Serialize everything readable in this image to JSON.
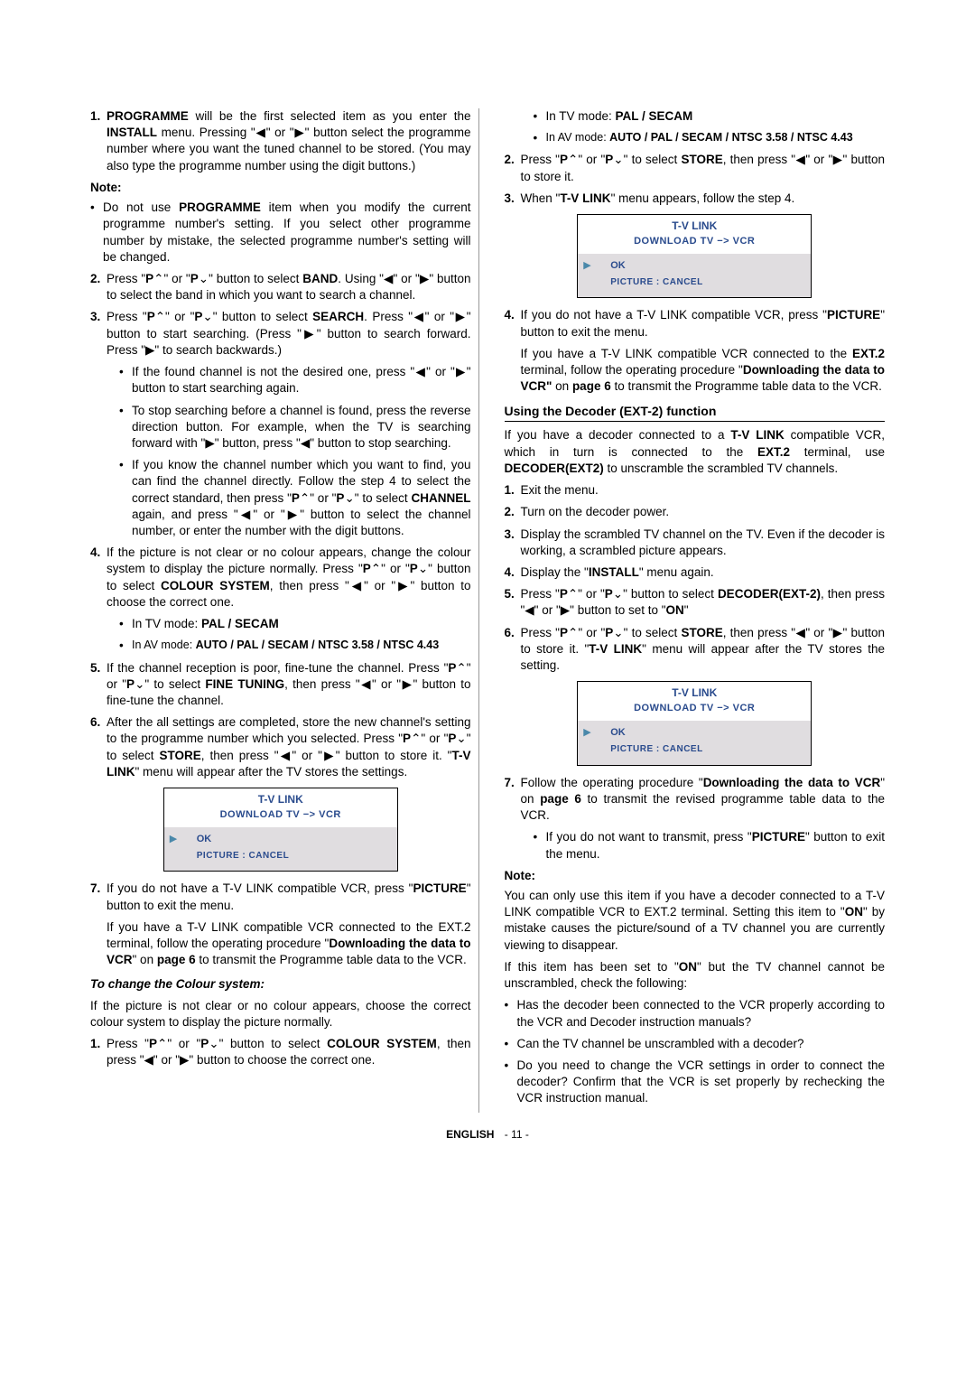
{
  "left": {
    "li1": {
      "n": "1.",
      "t_before": "",
      "t_bold": "PROGRAMME",
      "t_after": " will be the first selected item as you enter the ",
      "b2": "INSTALL",
      "t_after2": " menu. Pressing \"◀\" or \"▶\" button select the programme number where you want the tuned channel to be stored. (You may also type the programme number using the digit buttons.)"
    },
    "note": "Note:",
    "note_p": {
      "a": "Do not use ",
      "b": "PROGRAMME",
      "c": " item when you modify the current programme number's setting. If you select other programme number by mistake, the selected programme number's setting will be changed."
    },
    "li2": {
      "n": "2.",
      "a": "Press \"",
      "b1": "P",
      "arr1": "⌃",
      "mid": "\" or \"",
      "b2": "P",
      "arr2": "⌄",
      "c": "\" button to select ",
      "b3": "BAND",
      "d": ". Using \"◀\" or \"▶\" button to select the band in which you want to search a channel."
    },
    "li3": {
      "n": "3.",
      "a": "Press \"",
      "b1": "P",
      "arr1": "⌃",
      "mid": "\" or \"",
      "b2": "P",
      "arr2": "⌄",
      "c": "\" button to select ",
      "b3": "SEARCH",
      "d": ". Press \"◀\" or \"▶\" button to start searching. (Press \"▶\" button to search forward. Press \"▶\" to search backwards.)"
    },
    "li3_s1": "If the found channel is not the desired one, press \"◀\" or \"▶\" button to start searching again.",
    "li3_s2": "To stop searching before a channel is found, press the reverse direction button. For example, when the TV is searching forward with \"▶\" button, press \"◀\" button to stop searching.",
    "li3_s3": {
      "a": "If you know the channel number which you want to find, you can find the channel directly. Follow the step 4 to select the correct standard, then press \"",
      "b1": "P",
      "arr1": "⌃",
      "mid": "\" or \"",
      "b2": "P",
      "arr2": "⌄",
      "c": "\" to select ",
      "b3": "CHANNEL",
      "d": " again, and press \"◀\" or \"▶\" button to select the channel number, or enter the number with the digit buttons."
    },
    "li4": {
      "n": "4.",
      "a": "If the picture is not clear or no colour appears, change the colour system to display the picture normally. Press \"",
      "b1": "P",
      "arr1": "⌃",
      "mid": "\" or \"",
      "b2": "P",
      "arr2": "⌄",
      "c": "\" button to select ",
      "b3": "COLOUR SYSTEM",
      "d": ", then press \"◀\" or \"▶\" button to choose the correct one."
    },
    "li4_s1": {
      "a": "In TV mode: ",
      "b": "PAL / SECAM"
    },
    "li4_s2": {
      "a": "In AV mode: ",
      "b": "AUTO / PAL / SECAM / NTSC 3.58 / NTSC 4.43"
    },
    "li5": {
      "n": "5.",
      "a": "If the channel reception is poor, fine-tune the channel. Press \"",
      "b1": "P",
      "arr1": "⌃",
      "mid": "\" or \"",
      "b2": "P",
      "arr2": "⌄",
      "c": "\" to select ",
      "b3": "FINE TUNING",
      "d": ", then press \"◀\" or \"▶\" button to fine-tune the channel."
    },
    "li6": {
      "n": "6.",
      "a": "After the all settings are completed, store the new channel's setting to the programme number which you selected. Press \"",
      "b1": "P",
      "arr1": "⌃",
      "mid": "\" or \"",
      "b2": "P",
      "arr2": "⌄",
      "c": "\" to select ",
      "b3": "STORE",
      "d": ", then press \"◀\" or \"▶\" button to store it. \"",
      "b4": "T-V LINK",
      "e": "\" menu will appear after the TV stores the settings."
    },
    "li7": {
      "n": "7.",
      "a": "If you do not have a T-V LINK compatible VCR, press \"",
      "b": "PICTURE",
      "c": "\" button to exit the menu."
    },
    "li7_p2": {
      "a": "If you have a T-V LINK compatible VCR connected to the EXT.2 terminal, follow the operating procedure \"",
      "b": "Downloading the data to VCR",
      "c": "\" on ",
      "b2": "page 6",
      "d": " to transmit the Programme table data to the VCR."
    },
    "italic_h": "To change the Colour system:",
    "cs_p": "If the picture is not clear or no colour appears, choose the correct colour system to display the picture normally.",
    "cs1": {
      "n": "1.",
      "a": "Press \"",
      "b1": "P",
      "arr1": "⌃",
      "mid": "\" or \"",
      "b2": "P",
      "arr2": "⌄",
      "c": "\" button to select ",
      "b3": "COLOUR SYSTEM",
      "d": ", then press \"◀\" or \"▶\" button to choose the correct one."
    }
  },
  "right": {
    "r1_s1": {
      "a": "In TV mode: ",
      "b": "PAL / SECAM"
    },
    "r1_s2": {
      "a": "In AV mode: ",
      "b": "AUTO / PAL / SECAM / NTSC 3.58 / NTSC 4.43"
    },
    "r2": {
      "n": "2.",
      "a": "Press \"",
      "b1": "P",
      "arr1": "⌃",
      "mid": "\" or \"",
      "b2": "P",
      "arr2": "⌄",
      "c": "\" to select ",
      "b3": "STORE",
      "d": ", then press \"◀\" or \"▶\" button to store it."
    },
    "r3": {
      "n": "3.",
      "a": "When \"",
      "b": "T-V LINK",
      "c": "\" menu appears, follow the step 4."
    },
    "r4": {
      "n": "4.",
      "a": "If you do not have a T-V LINK compatible VCR, press \"",
      "b": "PICTURE",
      "c": "\" button to exit the menu."
    },
    "r4_p2": {
      "a": "If you have a T-V LINK compatible VCR connected to the ",
      "b": "EXT.2",
      "c": " terminal, follow the operating procedure \"",
      "b2": "Downloading the data to VCR\"",
      "d": " on ",
      "b3": "page 6",
      "e": " to transmit the Programme table data to the VCR."
    },
    "sec_h": "Using the Decoder (EXT-2) function",
    "dec_p": {
      "a": "If you have a decoder connected to a ",
      "b": "T-V LINK",
      "c": " compatible VCR, which in turn is connected to the ",
      "b2": "EXT.2",
      "d": " terminal, use ",
      "b3": "DECODER(EXT2)",
      "e": " to unscramble the scrambled TV channels."
    },
    "d1": {
      "n": "1.",
      "t": "Exit the menu."
    },
    "d2": {
      "n": "2.",
      "t": "Turn on the decoder power."
    },
    "d3": {
      "n": "3.",
      "t": "Display the scrambled TV channel on the TV. Even if the decoder is working, a scrambled picture appears."
    },
    "d4": {
      "n": "4.",
      "a": "Display the \"",
      "b": "INSTALL",
      "c": "\" menu again."
    },
    "d5": {
      "n": "5.",
      "a": "Press \"",
      "b1": "P",
      "arr1": "⌃",
      "mid": "\" or \"",
      "b2": "P",
      "arr2": "⌄",
      "c": "\" button to select ",
      "b3": "DECODER(EXT-2)",
      "d": ", then press \"◀\" or \"▶\" button to set to \"",
      "b4": "ON",
      "e": "\""
    },
    "d6": {
      "n": "6.",
      "a": "Press \"",
      "b1": "P",
      "arr1": "⌃",
      "mid": "\" or \"",
      "b2": "P",
      "arr2": "⌄",
      "c": "\" to select ",
      "b3": "STORE",
      "d": ", then press \"◀\" or \"▶\" button to store it. \"",
      "b4": "T-V LINK",
      "e": "\" menu will appear after the TV stores the setting."
    },
    "d7": {
      "n": "7.",
      "a": "Follow the operating procedure \"",
      "b": "Downloading the data to VCR",
      "c": "\" on ",
      "b2": "page 6",
      "d": " to transmit the revised programme table data to the VCR."
    },
    "d7_s1": {
      "a": "If you do not want to transmit, press \"",
      "b": "PICTURE",
      "c": "\" button to exit the menu."
    },
    "note": "Note:",
    "note_p1": {
      "a": "You can only use this item if you have a decoder connected to a T-V LINK compatible VCR to EXT.2 terminal. Setting this item to \"",
      "b": "ON",
      "c": "\" by mistake causes the picture/sound of a TV channel you are currently viewing to disappear."
    },
    "note_p2": {
      "a": "If this item has been set to \"",
      "b": "ON",
      "c": "\" but the TV channel cannot be unscrambled, check the following:"
    },
    "note_b1": "Has the decoder been connected to the VCR properly according to the VCR and Decoder instruction manuals?",
    "note_b2": "Can the TV channel be unscrambled with a decoder?",
    "note_b3": "Do you need to change the VCR settings in order to connect the decoder? Confirm that the VCR is set properly by rechecking the VCR instruction manual."
  },
  "menu": {
    "title": "T-V LINK",
    "sub": "DOWNLOAD  TV  −>  VCR",
    "ok": "OK",
    "cancel": "PICTURE  :  CANCEL",
    "cursor": "▶"
  },
  "footer": {
    "lang": "ENGLISH",
    "page": "- 11 -"
  }
}
